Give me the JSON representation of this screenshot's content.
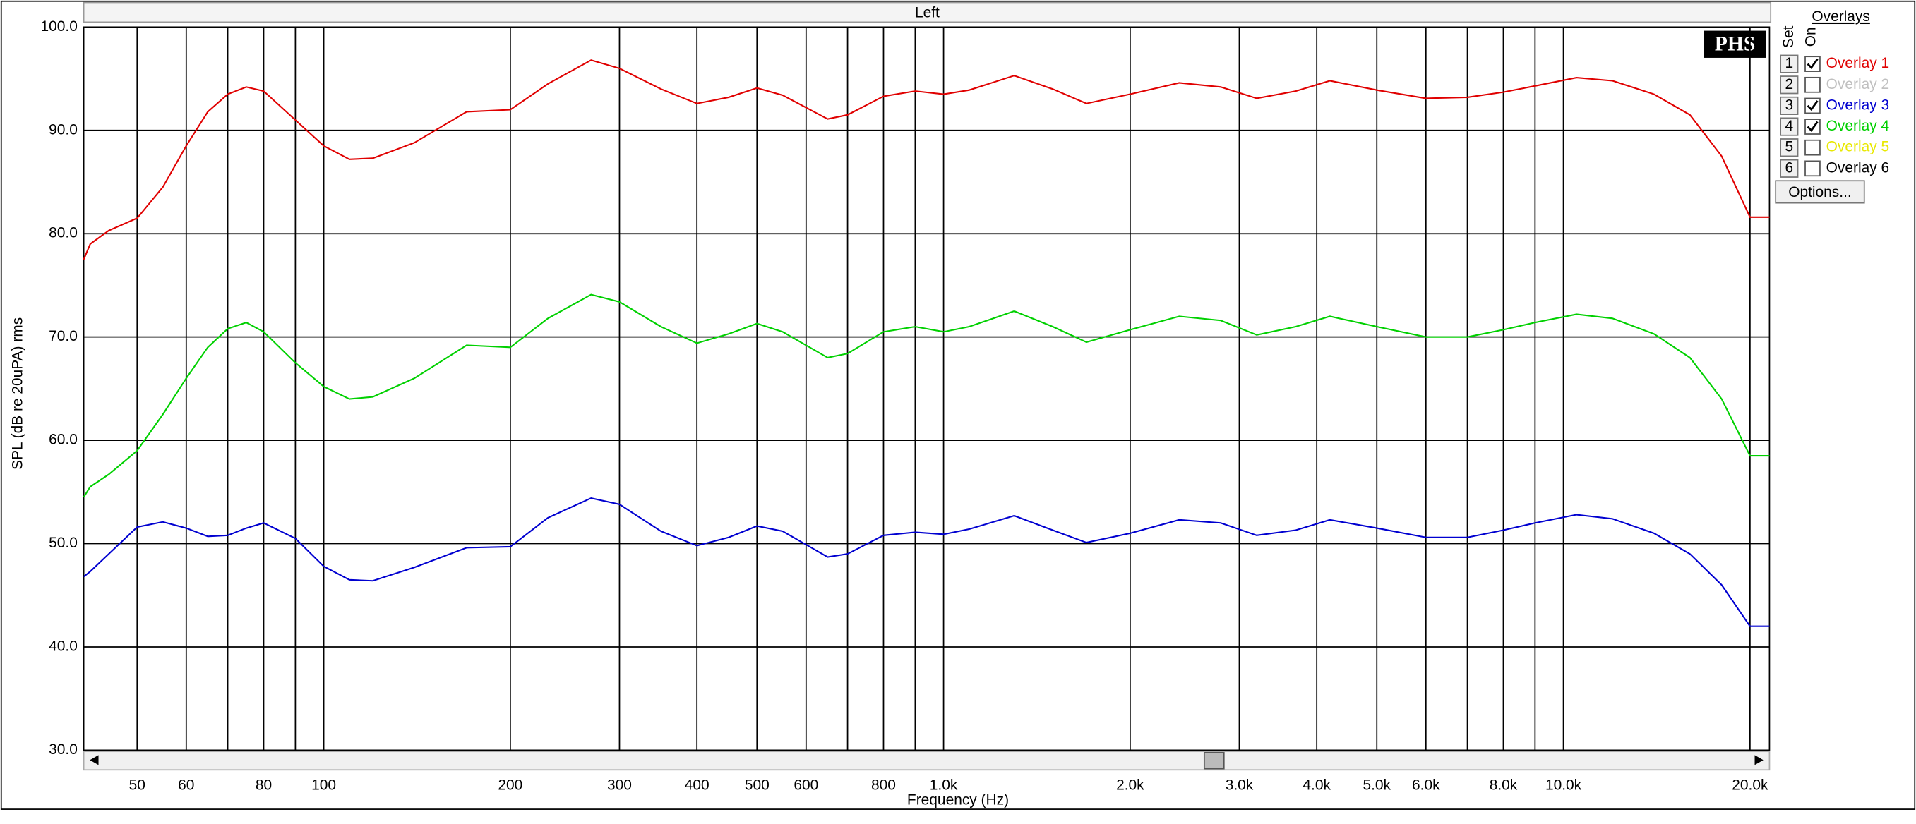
{
  "window": {
    "title": "Left"
  },
  "logo": "PHS",
  "panel": {
    "title": "Overlays",
    "set_label": "Set",
    "on_label": "On",
    "button": "Options..."
  },
  "chart_data": {
    "type": "line",
    "xlabel": "Frequency (Hz)",
    "ylabel": "SPL (dB re 20uPA) rms",
    "log_x": true,
    "grid": true,
    "xlim": [
      41,
      21500
    ],
    "ylim": [
      30,
      100
    ],
    "xticks": [
      50,
      60,
      80,
      100,
      200,
      300,
      400,
      500,
      600,
      800,
      {
        "value": 1000,
        "label": "1.0k"
      },
      {
        "value": 2000,
        "label": "2.0k"
      },
      {
        "value": 3000,
        "label": "3.0k"
      },
      {
        "value": 4000,
        "label": "4.0k"
      },
      {
        "value": 5000,
        "label": "5.0k"
      },
      {
        "value": 6000,
        "label": "6.0k"
      },
      {
        "value": 8000,
        "label": "8.0k"
      },
      {
        "value": 10000,
        "label": "10.0k"
      },
      {
        "value": 20000,
        "label": "20.0k"
      }
    ],
    "xminor": [
      70,
      90,
      700,
      900,
      7000,
      9000
    ],
    "yticks": [
      {
        "value": 30,
        "label": "30.0"
      },
      {
        "value": 40,
        "label": "40.0"
      },
      {
        "value": 50,
        "label": "50.0"
      },
      {
        "value": 60,
        "label": "60.0"
      },
      {
        "value": 70,
        "label": "70.0"
      },
      {
        "value": 80,
        "label": "80.0"
      },
      {
        "value": 90,
        "label": "90.0"
      },
      {
        "value": 100,
        "label": "100.0"
      }
    ],
    "x": [
      41,
      42,
      45,
      50,
      55,
      60,
      65,
      70,
      75,
      80,
      90,
      100,
      110,
      120,
      140,
      170,
      200,
      230,
      270,
      300,
      350,
      400,
      450,
      500,
      550,
      650,
      700,
      800,
      900,
      1000,
      1100,
      1300,
      1500,
      1700,
      2000,
      2400,
      2800,
      3200,
      3700,
      4200,
      5000,
      6000,
      7000,
      8000,
      9000,
      10500,
      12000,
      14000,
      16000,
      18000,
      20000,
      21500
    ],
    "series": [
      {
        "slot": 1,
        "name": "Overlay 1",
        "color": "#e00000",
        "checked": true,
        "values": [
          77.5,
          79,
          80.3,
          81.5,
          84.5,
          88.5,
          91.8,
          93.5,
          94.2,
          93.8,
          91,
          88.5,
          87.2,
          87.3,
          88.8,
          91.8,
          92,
          94.5,
          96.8,
          96,
          94,
          92.6,
          93.2,
          94.1,
          93.4,
          91.1,
          91.5,
          93.3,
          93.8,
          93.5,
          93.9,
          95.3,
          94,
          92.6,
          93.5,
          94.6,
          94.2,
          93.1,
          93.8,
          94.8,
          93.9,
          93.1,
          93.2,
          93.7,
          94.3,
          95.1,
          94.8,
          93.5,
          91.5,
          87.5,
          81.6,
          81.6
        ]
      },
      {
        "slot": 2,
        "name": "Overlay 2",
        "color": "#c0c0c0",
        "checked": false
      },
      {
        "slot": 3,
        "name": "Overlay 3",
        "color": "#0000d0",
        "checked": true,
        "values": [
          46.8,
          47.3,
          49,
          51.6,
          52.1,
          51.5,
          50.7,
          50.8,
          51.5,
          52,
          50.5,
          47.8,
          46.5,
          46.4,
          47.7,
          49.6,
          49.7,
          52.5,
          54.4,
          53.8,
          51.2,
          49.8,
          50.6,
          51.7,
          51.2,
          48.7,
          49,
          50.8,
          51.1,
          50.9,
          51.4,
          52.7,
          51.3,
          50.1,
          51,
          52.3,
          52,
          50.8,
          51.3,
          52.3,
          51.5,
          50.6,
          50.6,
          51.3,
          52,
          52.8,
          52.4,
          51,
          49,
          46,
          42,
          42
        ]
      },
      {
        "slot": 4,
        "name": "Overlay 4",
        "color": "#00d000",
        "checked": true,
        "values": [
          54.5,
          55.5,
          56.7,
          59,
          62.5,
          66,
          69,
          70.8,
          71.4,
          70.5,
          67.5,
          65.2,
          64,
          64.2,
          66,
          69.2,
          69,
          71.8,
          74.1,
          73.4,
          71,
          69.4,
          70.3,
          71.3,
          70.5,
          68,
          68.4,
          70.5,
          71,
          70.5,
          71,
          72.5,
          71,
          69.5,
          70.7,
          72,
          71.6,
          70.2,
          71,
          72,
          71,
          70,
          70,
          70.7,
          71.4,
          72.2,
          71.8,
          70.3,
          68,
          64,
          58.5,
          58.5
        ]
      },
      {
        "slot": 5,
        "name": "Overlay 5",
        "color": "#e8e800",
        "checked": false
      },
      {
        "slot": 6,
        "name": "Overlay 6",
        "color": "#000000",
        "checked": false
      }
    ]
  }
}
